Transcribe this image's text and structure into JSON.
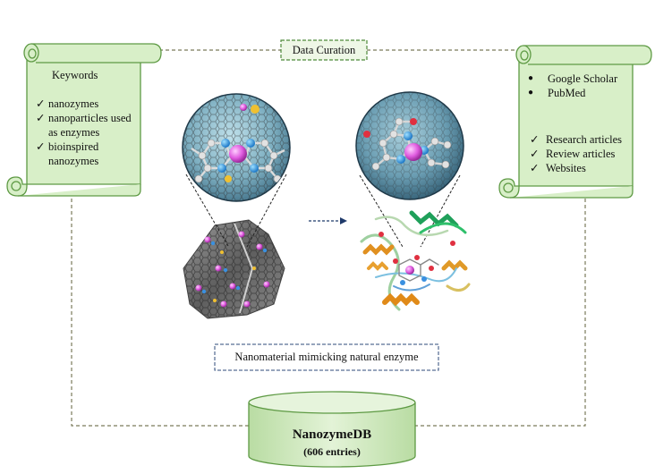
{
  "curation_label": "Data Curation",
  "keywords_scroll": {
    "title": "Keywords",
    "items": [
      "nanozymes",
      "nanoparticles used as enzymes",
      "bioinspired nanozymes"
    ]
  },
  "sources_scroll": {
    "bullets": [
      "Google Scholar",
      "PubMed"
    ],
    "checks": [
      "Research articles",
      "Review articles",
      "Websites"
    ]
  },
  "caption": "Nanomaterial mimicking natural enzyme",
  "database": {
    "name": "NanozymeDB",
    "entries": "(606 entries)"
  },
  "colors": {
    "scroll_fill": "#d8efc8",
    "scroll_stroke": "#5e9a44",
    "dashed_line": "#7a7a5a",
    "caption_border": "#2e4a7a",
    "db_fill": "#cfe8bd"
  }
}
